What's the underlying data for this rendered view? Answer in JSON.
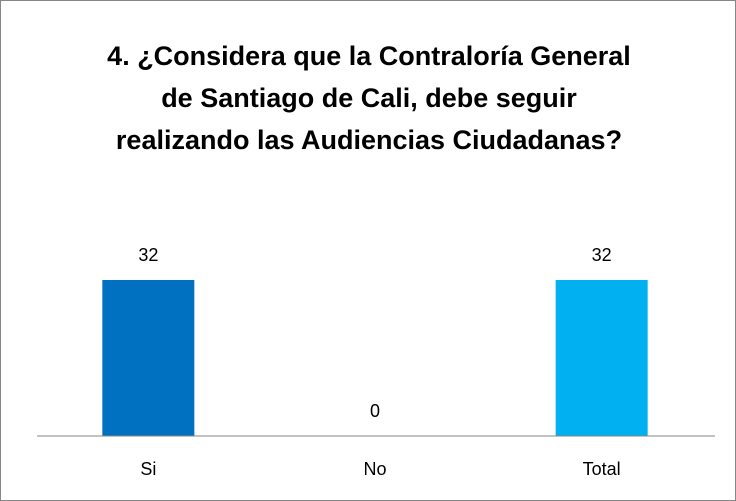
{
  "chart_data": {
    "type": "bar",
    "title": "4. ¿Considera que la Contraloría General de Santiago de Cali, debe seguir realizando las Audiencias Ciudadanas?",
    "categories": [
      "Si",
      "No",
      "Total"
    ],
    "values": [
      32,
      0,
      32
    ],
    "colors": [
      "#0070c0",
      "#0070c0",
      "#00b0f0"
    ],
    "ylim": [
      0,
      35
    ]
  }
}
